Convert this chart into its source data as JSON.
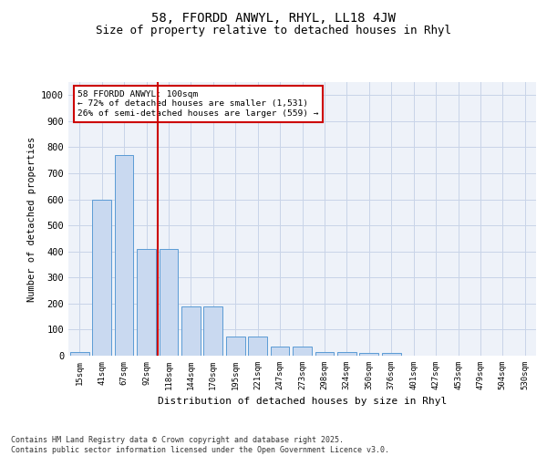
{
  "title_line1": "58, FFORDD ANWYL, RHYL, LL18 4JW",
  "title_line2": "Size of property relative to detached houses in Rhyl",
  "xlabel": "Distribution of detached houses by size in Rhyl",
  "ylabel": "Number of detached properties",
  "categories": [
    "15sqm",
    "41sqm",
    "67sqm",
    "92sqm",
    "118sqm",
    "144sqm",
    "170sqm",
    "195sqm",
    "221sqm",
    "247sqm",
    "273sqm",
    "298sqm",
    "324sqm",
    "350sqm",
    "376sqm",
    "401sqm",
    "427sqm",
    "453sqm",
    "479sqm",
    "504sqm",
    "530sqm"
  ],
  "values": [
    15,
    600,
    770,
    410,
    410,
    190,
    190,
    75,
    75,
    35,
    35,
    15,
    15,
    10,
    10,
    0,
    0,
    0,
    0,
    0,
    0
  ],
  "bar_color": "#c9d9f0",
  "bar_edge_color": "#5b9bd5",
  "vline_x_index": 3,
  "vline_color": "#cc0000",
  "annotation_text": "58 FFORDD ANWYL: 100sqm\n← 72% of detached houses are smaller (1,531)\n26% of semi-detached houses are larger (559) →",
  "annotation_box_color": "#cc0000",
  "ylim": [
    0,
    1050
  ],
  "yticks": [
    0,
    100,
    200,
    300,
    400,
    500,
    600,
    700,
    800,
    900,
    1000
  ],
  "grid_color": "#c8d4e8",
  "bg_color": "#eef2f9",
  "footer": "Contains HM Land Registry data © Crown copyright and database right 2025.\nContains public sector information licensed under the Open Government Licence v3.0.",
  "title_fontsize": 10,
  "subtitle_fontsize": 9,
  "bar_width": 0.85
}
